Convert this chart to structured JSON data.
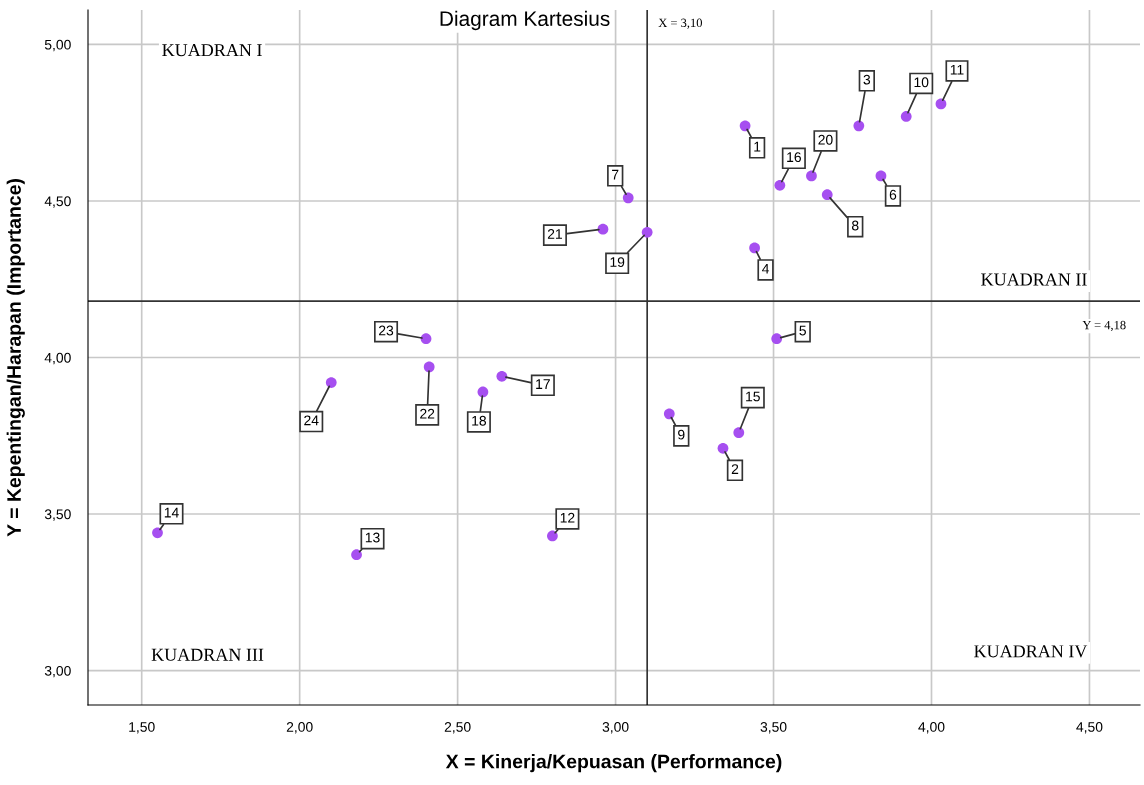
{
  "chart_data": {
    "type": "scatter",
    "title": "Diagram Kartesius",
    "xlabel": "X = Kinerja/Kepuasan (Performance)",
    "ylabel": "Y = Kepentingan/Harapan (Importance)",
    "x": [
      3.41,
      3.34,
      3.77,
      3.44,
      3.51,
      3.84,
      3.04,
      3.67,
      3.17,
      3.92,
      4.03,
      2.8,
      2.18,
      1.55,
      3.39,
      3.52,
      2.64,
      2.58,
      3.1,
      3.62,
      2.96,
      2.41,
      2.4,
      2.1
    ],
    "series": [
      {
        "color": "#a64ff0",
        "values": [
          4.74,
          3.71,
          4.74,
          4.35,
          4.06,
          4.58,
          4.51,
          4.52,
          3.82,
          4.77,
          4.81,
          3.43,
          3.37,
          3.44,
          3.76,
          4.55,
          3.94,
          3.89,
          4.4,
          4.58,
          4.41,
          3.97,
          4.06,
          3.92
        ]
      }
    ],
    "annotations": [
      {
        "text": "1",
        "x": 3.41,
        "y": 4.74
      },
      {
        "text": "2",
        "x": 3.34,
        "y": 3.71
      },
      {
        "text": "3",
        "x": 3.77,
        "y": 4.74
      },
      {
        "text": "4",
        "x": 3.44,
        "y": 4.35
      },
      {
        "text": "5",
        "x": 3.51,
        "y": 4.06
      },
      {
        "text": "6",
        "x": 3.84,
        "y": 4.58
      },
      {
        "text": "7",
        "x": 3.04,
        "y": 4.51
      },
      {
        "text": "8",
        "x": 3.67,
        "y": 4.52
      },
      {
        "text": "9",
        "x": 3.17,
        "y": 3.82
      },
      {
        "text": "10",
        "x": 3.92,
        "y": 4.77
      },
      {
        "text": "11",
        "x": 4.03,
        "y": 4.81
      },
      {
        "text": "12",
        "x": 2.8,
        "y": 3.43
      },
      {
        "text": "13",
        "x": 2.18,
        "y": 3.37
      },
      {
        "text": "14",
        "x": 1.55,
        "y": 3.44
      },
      {
        "text": "15",
        "x": 3.39,
        "y": 3.76
      },
      {
        "text": "16",
        "x": 3.52,
        "y": 4.55
      },
      {
        "text": "17",
        "x": 2.64,
        "y": 3.94
      },
      {
        "text": "18",
        "x": 2.58,
        "y": 3.89
      },
      {
        "text": "19",
        "x": 3.1,
        "y": 4.4
      },
      {
        "text": "20",
        "x": 3.62,
        "y": 4.58
      },
      {
        "text": "21",
        "x": 2.96,
        "y": 4.41
      },
      {
        "text": "22",
        "x": 2.41,
        "y": 3.97
      },
      {
        "text": "23",
        "x": 2.4,
        "y": 4.06
      },
      {
        "text": "24",
        "x": 2.1,
        "y": 3.92
      },
      "KUADRAN I",
      "KUADRAN II",
      "KUADRAN III",
      "KUADRAN IV"
    ],
    "ref_lines": [
      {
        "axis": "x",
        "value": 3.1,
        "label": "X = 3,10",
        "color": "#333333"
      },
      {
        "axis": "y",
        "value": 4.18,
        "label": "Y = 4,18",
        "color": "#333333"
      }
    ],
    "xlim": [
      1.33,
      4.66
    ],
    "ylim": [
      2.89,
      5.11
    ],
    "xticks": [
      {
        "value": 1.5,
        "label": "1,50"
      },
      {
        "value": 2.0,
        "label": "2,00"
      },
      {
        "value": 2.5,
        "label": "2,50"
      },
      {
        "value": 3.0,
        "label": "3,00"
      },
      {
        "value": 3.5,
        "label": "3,50"
      },
      {
        "value": 4.0,
        "label": "4,00"
      },
      {
        "value": 4.5,
        "label": "4,50"
      }
    ],
    "yticks": [
      {
        "value": 3.0,
        "label": "3,00"
      },
      {
        "value": 3.5,
        "label": "3,50"
      },
      {
        "value": 4.0,
        "label": "4,00"
      },
      {
        "value": 4.5,
        "label": "4,50"
      },
      {
        "value": 5.0,
        "label": "5,00"
      }
    ],
    "grid": true,
    "marker": "circle"
  }
}
